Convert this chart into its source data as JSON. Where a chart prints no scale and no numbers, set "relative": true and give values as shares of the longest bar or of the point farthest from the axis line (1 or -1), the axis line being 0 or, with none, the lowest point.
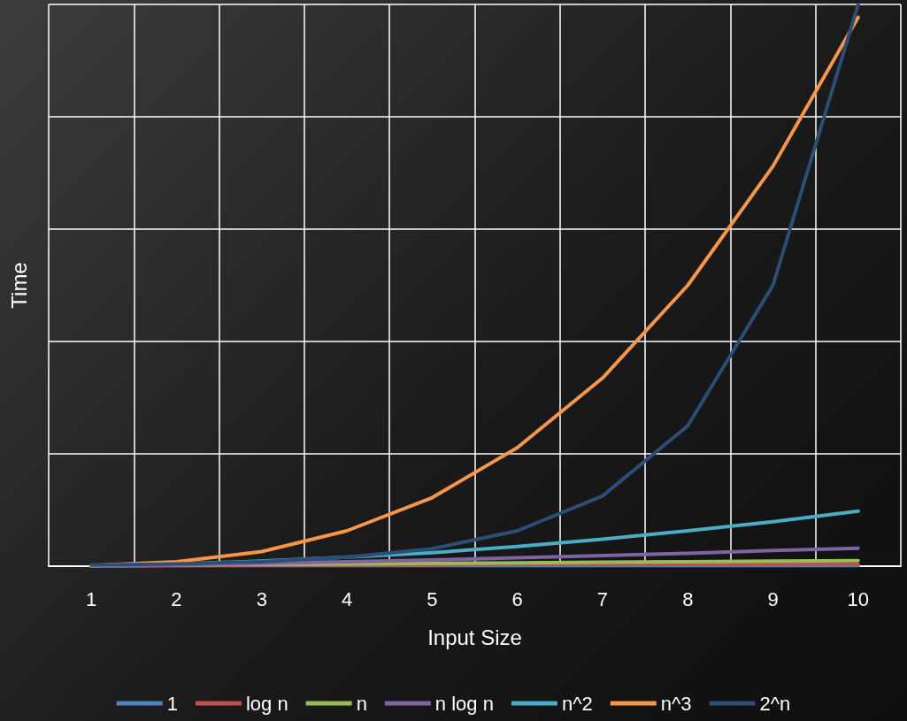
{
  "chart_data": {
    "type": "line",
    "xlabel": "Input Size",
    "ylabel": "Time",
    "relative": true,
    "grid": true,
    "legend": "bottom",
    "marker": "none",
    "line_style": "solid",
    "categories": [
      "1",
      "2",
      "3",
      "4",
      "5",
      "6",
      "7",
      "8",
      "9",
      "10"
    ],
    "series": [
      {
        "name": "1",
        "color": "#4f81bd",
        "values": [
          0.001,
          0.001,
          0.001,
          0.001,
          0.001,
          0.001,
          0.001,
          0.001,
          0.001,
          0.001
        ]
      },
      {
        "name": "log n",
        "color": "#c0504d",
        "values": [
          0,
          0.001,
          0.002,
          0.002,
          0.002,
          0.003,
          0.003,
          0.003,
          0.003,
          0.003
        ]
      },
      {
        "name": "n",
        "color": "#9bbb59",
        "values": [
          0.001,
          0.002,
          0.003,
          0.004,
          0.005,
          0.006,
          0.007,
          0.008,
          0.009,
          0.01
        ]
      },
      {
        "name": "n log n",
        "color": "#8064a2",
        "values": [
          0,
          0.002,
          0.005,
          0.008,
          0.011,
          0.015,
          0.019,
          0.023,
          0.028,
          0.032
        ]
      },
      {
        "name": "n^2",
        "color": "#4bacc6",
        "values": [
          0.001,
          0.004,
          0.009,
          0.016,
          0.024,
          0.035,
          0.048,
          0.063,
          0.079,
          0.098
        ]
      },
      {
        "name": "n^3",
        "color": "#f79646",
        "values": [
          0.001,
          0.008,
          0.026,
          0.063,
          0.122,
          0.211,
          0.335,
          0.5,
          0.712,
          0.977
        ]
      },
      {
        "name": "2^n",
        "color": "#2c4d75",
        "values": [
          0.002,
          0.004,
          0.008,
          0.016,
          0.031,
          0.063,
          0.125,
          0.25,
          0.5,
          1
        ]
      }
    ]
  }
}
